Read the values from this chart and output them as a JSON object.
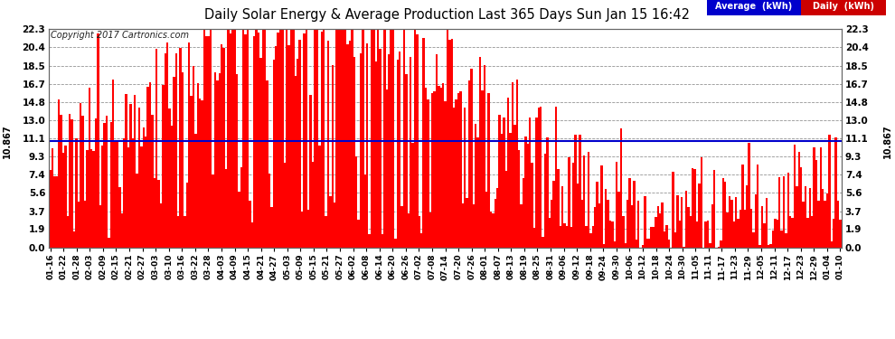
{
  "title": "Daily Solar Energy & Average Production Last 365 Days Sun Jan 15 16:42",
  "copyright": "Copyright 2017 Cartronics.com",
  "average_value": 10.867,
  "average_label": "10.867",
  "bar_color": "#ff0000",
  "avg_line_color": "#0000cc",
  "background_color": "#ffffff",
  "plot_bg_color": "#ffffff",
  "yticks": [
    0.0,
    1.9,
    3.7,
    5.6,
    7.4,
    9.3,
    11.1,
    13.0,
    14.8,
    16.7,
    18.5,
    20.4,
    22.3
  ],
  "ylim": [
    0.0,
    22.3
  ],
  "legend_avg_bg": "#0000cc",
  "legend_daily_bg": "#cc0000",
  "legend_avg_text": "Average  (kWh)",
  "legend_daily_text": "Daily  (kWh)",
  "xtick_dates": [
    "01-16",
    "01-22",
    "01-28",
    "02-03",
    "02-09",
    "02-15",
    "02-21",
    "02-27",
    "03-03",
    "03-10",
    "03-16",
    "03-22",
    "03-28",
    "04-03",
    "04-09",
    "04-15",
    "04-21",
    "04-27",
    "05-03",
    "05-09",
    "05-15",
    "05-21",
    "05-27",
    "06-02",
    "06-08",
    "06-14",
    "06-20",
    "06-26",
    "07-02",
    "07-08",
    "07-14",
    "07-20",
    "07-26",
    "08-01",
    "08-07",
    "08-13",
    "08-19",
    "08-25",
    "08-31",
    "09-06",
    "09-12",
    "09-18",
    "09-24",
    "09-30",
    "10-06",
    "10-12",
    "10-18",
    "10-24",
    "10-30",
    "11-05",
    "11-11",
    "11-17",
    "11-23",
    "11-29",
    "12-05",
    "12-11",
    "12-17",
    "12-23",
    "12-29",
    "01-04",
    "01-10"
  ],
  "num_bars": 365,
  "seed": 12345
}
